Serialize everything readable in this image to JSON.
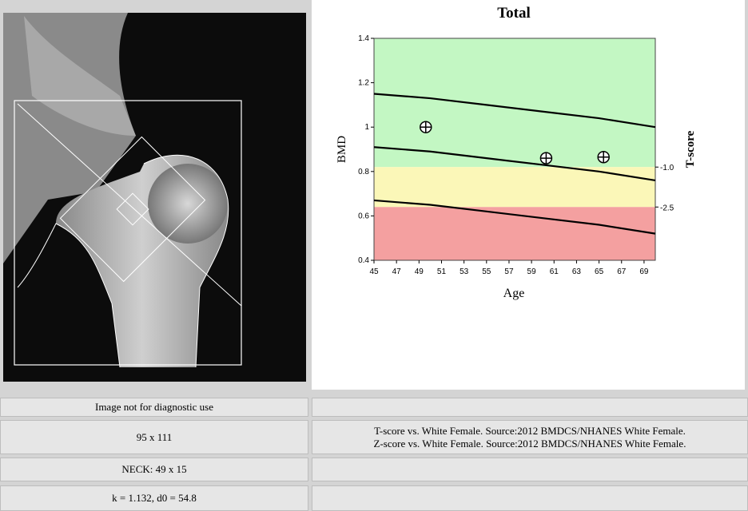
{
  "chart_data": {
    "type": "line",
    "title": "Total",
    "x_label": "Age",
    "y_label": "BMD",
    "y2_label": "T-score",
    "xlim": [
      45,
      70
    ],
    "xticks": [
      45,
      47,
      49,
      51,
      53,
      55,
      57,
      59,
      61,
      63,
      65,
      67,
      69
    ],
    "ylim": [
      0.4,
      1.4
    ],
    "yticks": [
      0.4,
      0.6,
      0.8,
      1.0,
      1.2,
      1.4
    ],
    "tscore_ticks": [
      {
        "value": 0.82,
        "label": "-1.0"
      },
      {
        "value": 0.64,
        "label": "-2.5"
      }
    ],
    "zones": [
      {
        "from": 0.82,
        "to": 1.4,
        "color": "#c3f7c3"
      },
      {
        "from": 0.64,
        "to": 0.82,
        "color": "#fbf7b8"
      },
      {
        "from": 0.4,
        "to": 0.64,
        "color": "#f4a0a0"
      }
    ],
    "x": [
      45,
      50,
      55,
      60,
      65,
      70
    ],
    "series": [
      {
        "color": "#000000",
        "values": [
          1.15,
          1.13,
          1.1,
          1.07,
          1.04,
          1.0
        ]
      },
      {
        "color": "#000000",
        "values": [
          0.91,
          0.89,
          0.86,
          0.83,
          0.8,
          0.76
        ]
      },
      {
        "color": "#000000",
        "values": [
          0.67,
          0.65,
          0.62,
          0.59,
          0.56,
          0.52
        ]
      }
    ],
    "points": {
      "x": [
        49.6,
        60.3,
        65.4
      ],
      "values": [
        1.0,
        0.86,
        0.865
      ]
    }
  },
  "table": {
    "left": [
      "Image not for diagnostic use",
      "95 x 111",
      "NECK: 49 x 15",
      "k = 1.132, d0 = 54.8"
    ],
    "right_notes": [
      "T-score vs. White Female. Source:2012 BMDCS/NHANES White Female.",
      "Z-score vs. White Female. Source:2012 BMDCS/NHANES White Female."
    ]
  }
}
